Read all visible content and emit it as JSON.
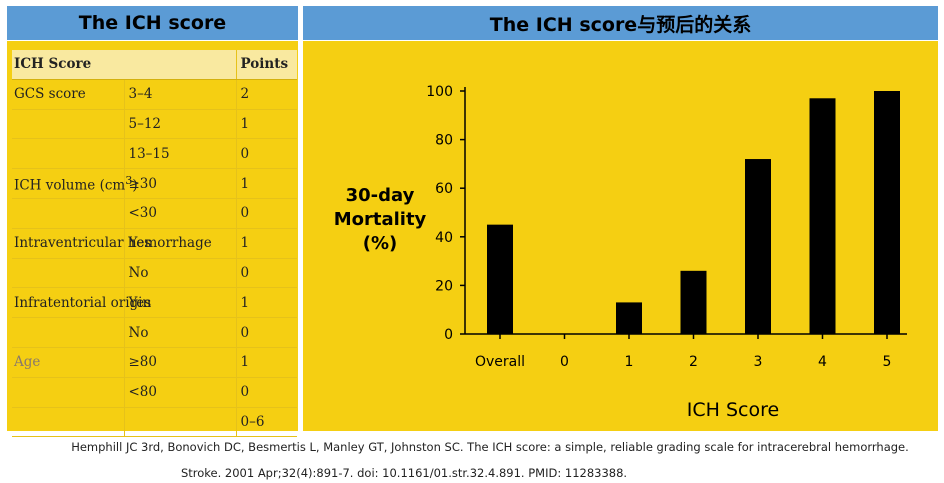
{
  "left_header": {
    "title": "The ICH score"
  },
  "right_header": {
    "title": "The ICH score与预后的关系"
  },
  "table": {
    "header": {
      "label": "ICH Score",
      "points": "Points"
    },
    "rows": [
      {
        "label": "GCS score",
        "range": "3–4",
        "points": "2"
      },
      {
        "label": "",
        "range": "5–12",
        "points": "1"
      },
      {
        "label": "",
        "range": "13–15",
        "points": "0"
      },
      {
        "label": "ICH volume (cm",
        "sup": "3",
        "label_tail": ")",
        "range": "≥30",
        "points": "1"
      },
      {
        "label": "",
        "range": "<30",
        "points": "0"
      },
      {
        "label": "Intraventricular hemorrhage",
        "range": "Yes",
        "points": "1"
      },
      {
        "label": "",
        "range": "No",
        "points": "0"
      },
      {
        "label": "Infratentorial origin",
        "range": "Yes",
        "points": "1"
      },
      {
        "label": "",
        "range": "No",
        "points": "0"
      },
      {
        "label": "Age",
        "range": "≥80",
        "points": "1"
      },
      {
        "label": "",
        "range": "<80",
        "points": "0"
      },
      {
        "label": "",
        "range": "",
        "points": "0–6"
      }
    ]
  },
  "chart_data": {
    "type": "bar",
    "categories": [
      "Overall",
      "0",
      "1",
      "2",
      "3",
      "4",
      "5"
    ],
    "values": [
      45,
      0,
      13,
      26,
      72,
      97,
      100
    ],
    "ylabel": "30-day Mortality (%)",
    "ylabel_lines": [
      "30-day",
      "Mortality",
      "(%)"
    ],
    "xlabel": "ICH Score",
    "ylim": [
      0,
      100
    ],
    "yticks": [
      0,
      20,
      40,
      60,
      80,
      100
    ],
    "grid": false,
    "bar_color": "#000000"
  },
  "citation": {
    "line1": "Hemphill JC 3rd, Bonovich DC, Besmertis L, Manley GT, Johnston SC. The ICH score: a simple, reliable grading scale for intracerebral hemorrhage.",
    "line2": "Stroke. 2001 Apr;32(4):891-7. doi: 10.1161/01.str.32.4.891. PMID: 11283388."
  }
}
